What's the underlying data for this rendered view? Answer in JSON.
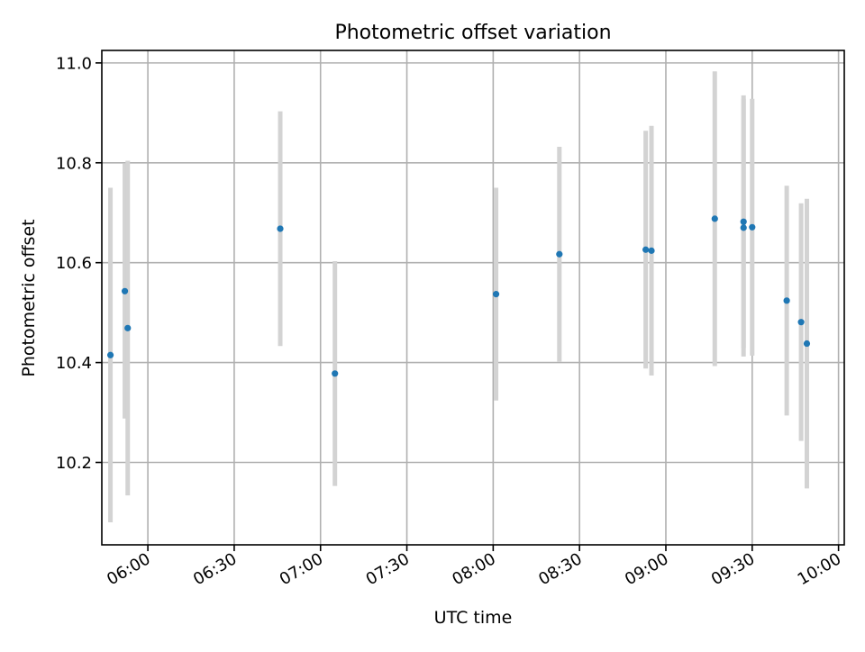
{
  "chart_data": {
    "type": "scatter",
    "title": "Photometric offset variation",
    "xlabel": "UTC time",
    "ylabel": "Photometric offset",
    "x_axis": {
      "kind": "time",
      "range": [
        "05:44",
        "10:02"
      ],
      "ticks": [
        "06:00",
        "06:30",
        "07:00",
        "07:30",
        "08:00",
        "08:30",
        "09:00",
        "09:30",
        "10:00"
      ]
    },
    "y_axis": {
      "range": [
        10.035,
        11.025
      ],
      "ticks": [
        10.2,
        10.4,
        10.6,
        10.8,
        11.0
      ],
      "tick_labels": [
        "10.2",
        "10.4",
        "10.6",
        "10.8",
        "11.0"
      ]
    },
    "grid": true,
    "colors": {
      "point": "#1f77b4",
      "errorbar": "#d3d3d3",
      "grid": "#b0b0b0"
    },
    "points": [
      {
        "time": "05:47",
        "y": 10.415,
        "err": 0.335
      },
      {
        "time": "05:52",
        "y": 10.543,
        "err": 0.255
      },
      {
        "time": "05:53",
        "y": 10.469,
        "err": 0.335
      },
      {
        "time": "06:46",
        "y": 10.668,
        "err": 0.235
      },
      {
        "time": "07:05",
        "y": 10.378,
        "err": 0.225
      },
      {
        "time": "08:01",
        "y": 10.537,
        "err": 0.213
      },
      {
        "time": "08:23",
        "y": 10.617,
        "err": 0.215
      },
      {
        "time": "08:53",
        "y": 10.626,
        "err": 0.238
      },
      {
        "time": "08:55",
        "y": 10.624,
        "err": 0.25
      },
      {
        "time": "09:17",
        "y": 10.688,
        "err": 0.295
      },
      {
        "time": "09:27",
        "y": 10.682,
        "err": 0.253
      },
      {
        "time": "09:27",
        "y": 10.67,
        "err": 0.258
      },
      {
        "time": "09:30",
        "y": 10.671,
        "err": 0.257
      },
      {
        "time": "09:42",
        "y": 10.524,
        "err": 0.23
      },
      {
        "time": "09:47",
        "y": 10.481,
        "err": 0.238
      },
      {
        "time": "09:49",
        "y": 10.438,
        "err": 0.29
      }
    ]
  }
}
